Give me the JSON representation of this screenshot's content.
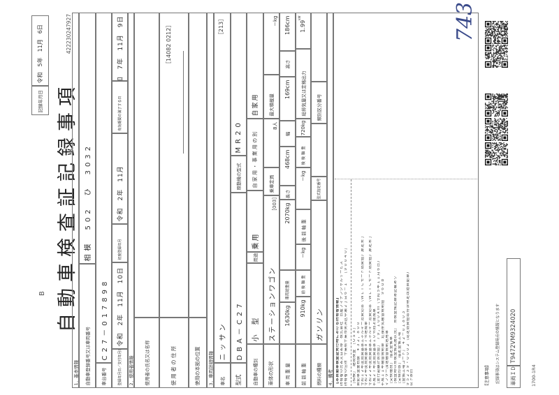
{
  "header": {
    "record_date_label": "記録年月日",
    "record_date": "令和　5年　11月　6日",
    "doc_code": "B",
    "title": "自動車検査証記録事項",
    "doc_number": "422230247927"
  },
  "basic": {
    "section": "1．基本情報",
    "reg_label": "自動車登録番号又は車両番号",
    "reg_value": "相模　502　ひ　3032",
    "chassis_label": "車台番号",
    "chassis_value": "C27－017898",
    "reg_date_label": "登録年月日／交付年月日",
    "reg_date": "令和　2年　11月　10日",
    "first_reg_label": "初度登録年月",
    "first_reg": "令和　2年　11月",
    "expiry_label": "有効期間の満了する日",
    "expiry": "令和　7年　11月　9日"
  },
  "user": {
    "section": "2．使用者情報",
    "name_label": "使用者の氏名又は名称",
    "address_label": "使 用 者 の 住 所",
    "address_code": "［14082 0212］",
    "base_label": "使用の本拠の位置"
  },
  "vehicle": {
    "section": "3．車両詳細情報",
    "make_label": "車名",
    "make": "ニッサン",
    "make_code": "［213］",
    "model_label": "型式",
    "model": "DBA－C27",
    "engine_label": "原動機の型式",
    "engine": "MR20",
    "kind_label": "自動車の種別",
    "kind": "小　型",
    "use_label": "用途",
    "use": "乗用",
    "private_label": "自 家 用 ・ 事 業 用 の 別",
    "private": "自家用",
    "body_label": "車体の形状",
    "body": "ステーションワゴン",
    "body_code": "［003］",
    "capacity_label": "乗車定員",
    "capacity": "8人",
    "max_load_label": "最大積載量",
    "max_load": "－kg",
    "weight_label": "車 両 重 量",
    "weight": "1630kg",
    "gross_label": "車両総重量",
    "gross": "2070kg",
    "length_label": "長さ",
    "length": "468cm",
    "width_label": "幅",
    "width": "169cm",
    "height_label": "高さ",
    "height": "186cm",
    "ff_axle_label": "前 前 軸 重",
    "ff_axle": "910kg",
    "fr_axle_label": "前 後 軸 重",
    "fr_axle": "－kg",
    "rf_axle_label": "後 前 軸 重",
    "rf_axle": "－kg",
    "rr_axle_label": "後 後 軸 重",
    "rr_axle": "720kg",
    "displacement_label": "総排気量又は定格出力",
    "displacement": "1.99",
    "displacement_unit": "kW",
    "fuel_label": "燃料の種類",
    "fuel": "ガソリン",
    "type_no_label": "型式指定番号",
    "class_no_label": "類別区分番号"
  },
  "remarks": {
    "section": "4．備考",
    "owner_lines": [
      "【本自動車検査証発行時における所有者情報】",
      "所有者の氏名又は名称　株式会社　日産フィナンシャルサービス",
      "所有者の住所　千葉県千葉市美浜区中瀬２丁目６－１　　［９００４０］"
    ],
    "lines": [
      "［相模］　継続検査　［ＯＳＳ］",
      "自動車重量税額　￥３２，８００",
      "令和１２年度燃費基準エネルギー消費効率（ＷＬＴＣモード燃費値）算定未了",
      "令和２年度燃費基準８７％達成車",
      "令和２２年度燃費基準エネルギー消費効率（ＷＬＴＣモード燃費値）算定未了",
      "平成２７年度燃費基準１０％向上達成車",
      "［走行距離計表示値］　７９，１００ｋｍ（令和５年１１月６日）",
      "平成１１年騒音規制車　近接排気騒音規制値　９６ｄＢ",
      "マフラー加速騒音規制適用車",
      "［受検種別］　指定整備車",
      "［検査時の点検整備実施状況］　点検整備記録簿記載あり",
      "［受検形態］　指定整備工場",
      "［整備工場コード］　４２－０１８０３",
      "９５２３９・０００２（認定燃費値取得済特定改造自動車）",
      "以下余白"
    ]
  },
  "handwritten": "743",
  "notes": {
    "heading": "【注意事項】",
    "text": "記録事項はシステム登録時点の情報となります",
    "vehicle_id_label": "車両ＩＤ",
    "vehicle_id": "T9472VM9324020",
    "form_code": "1700-1R4"
  },
  "colors": {
    "ink": "#333333",
    "rule": "#777777",
    "paper": "#ffffff"
  }
}
